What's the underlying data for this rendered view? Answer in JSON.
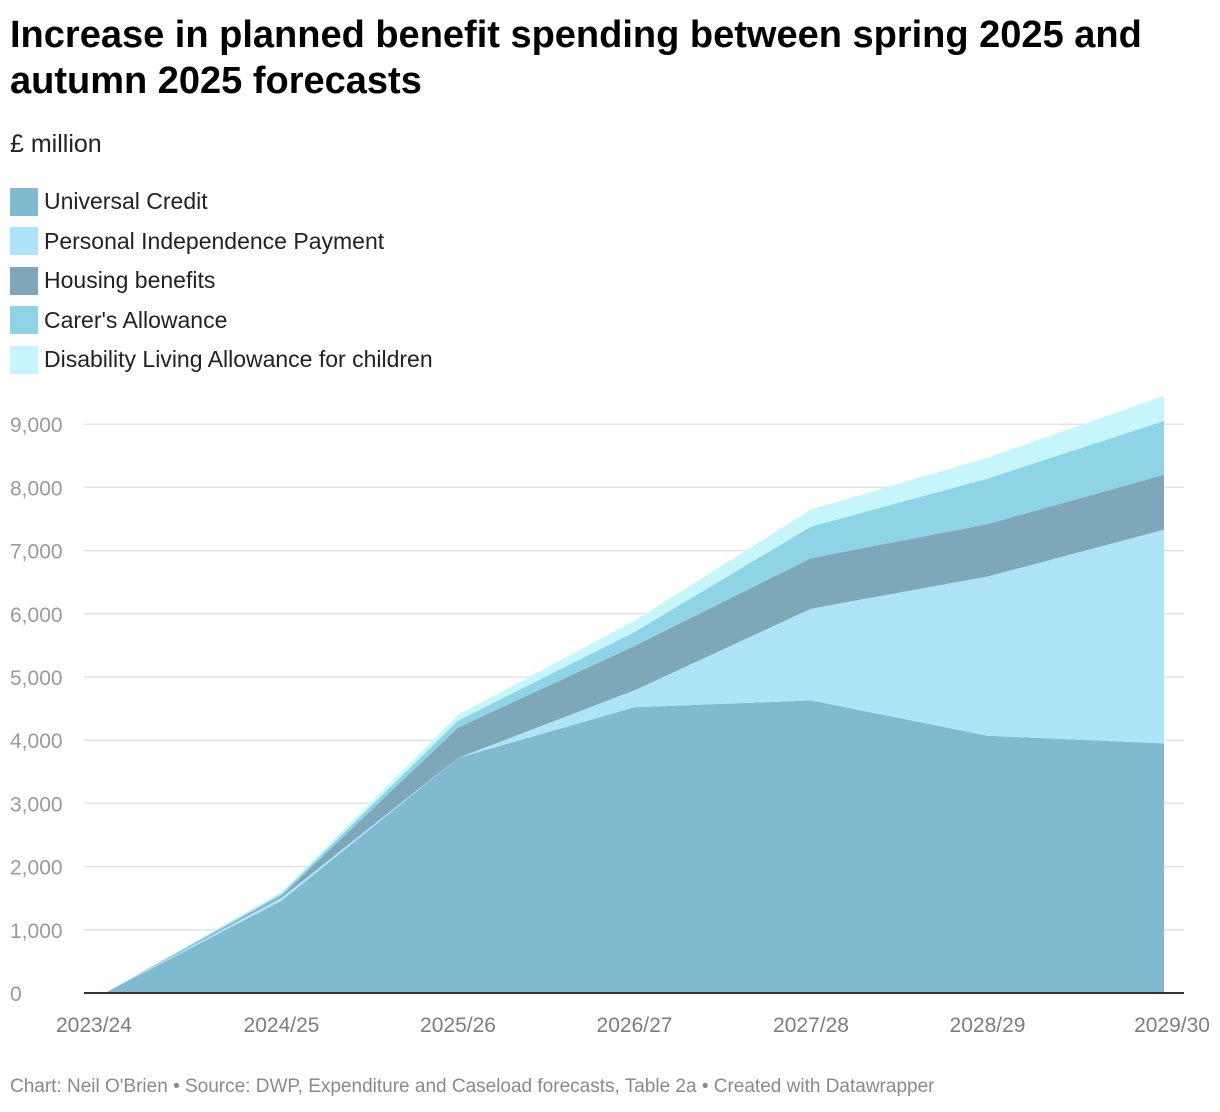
{
  "chart_data": {
    "type": "area",
    "stacked": true,
    "title": "Increase in planned benefit spending between spring 2025 and autumn 2025 forecasts",
    "subtitle": "£ million",
    "categories": [
      "2023/24",
      "2024/25",
      "2025/26",
      "2026/27",
      "2027/28",
      "2028/29",
      "2029/30"
    ],
    "series": [
      {
        "name": "Universal Credit",
        "color": "#80bad0",
        "values": [
          0,
          1460,
          3720,
          4520,
          4630,
          4070,
          3950
        ]
      },
      {
        "name": "Personal Independence Payment",
        "color": "#ade4f8",
        "values": [
          0,
          50,
          0,
          270,
          1450,
          2520,
          3380
        ]
      },
      {
        "name": "Housing benefits",
        "color": "#7fa7ba",
        "values": [
          0,
          30,
          480,
          700,
          800,
          830,
          870
        ]
      },
      {
        "name": "Carer's Allowance",
        "color": "#8ed3e6",
        "values": [
          0,
          30,
          110,
          220,
          500,
          720,
          850
        ]
      },
      {
        "name": "Disability Living Allowance for children",
        "color": "#c5f6fb",
        "values": [
          0,
          30,
          90,
          180,
          270,
          330,
          400
        ]
      }
    ],
    "ylim": [
      0,
      9450
    ],
    "yticks": [
      0,
      1000,
      2000,
      3000,
      4000,
      5000,
      6000,
      7000,
      8000,
      9000
    ],
    "ytick_labels": [
      "0",
      "1,000",
      "2,000",
      "3,000",
      "4,000",
      "5,000",
      "6,000",
      "7,000",
      "8,000",
      "9,000"
    ],
    "grid": true,
    "legend_position": "top-left"
  },
  "footer": "Chart: Neil O'Brien • Source: DWP, Expenditure and Caseload forecasts, Table 2a • Created with Datawrapper"
}
